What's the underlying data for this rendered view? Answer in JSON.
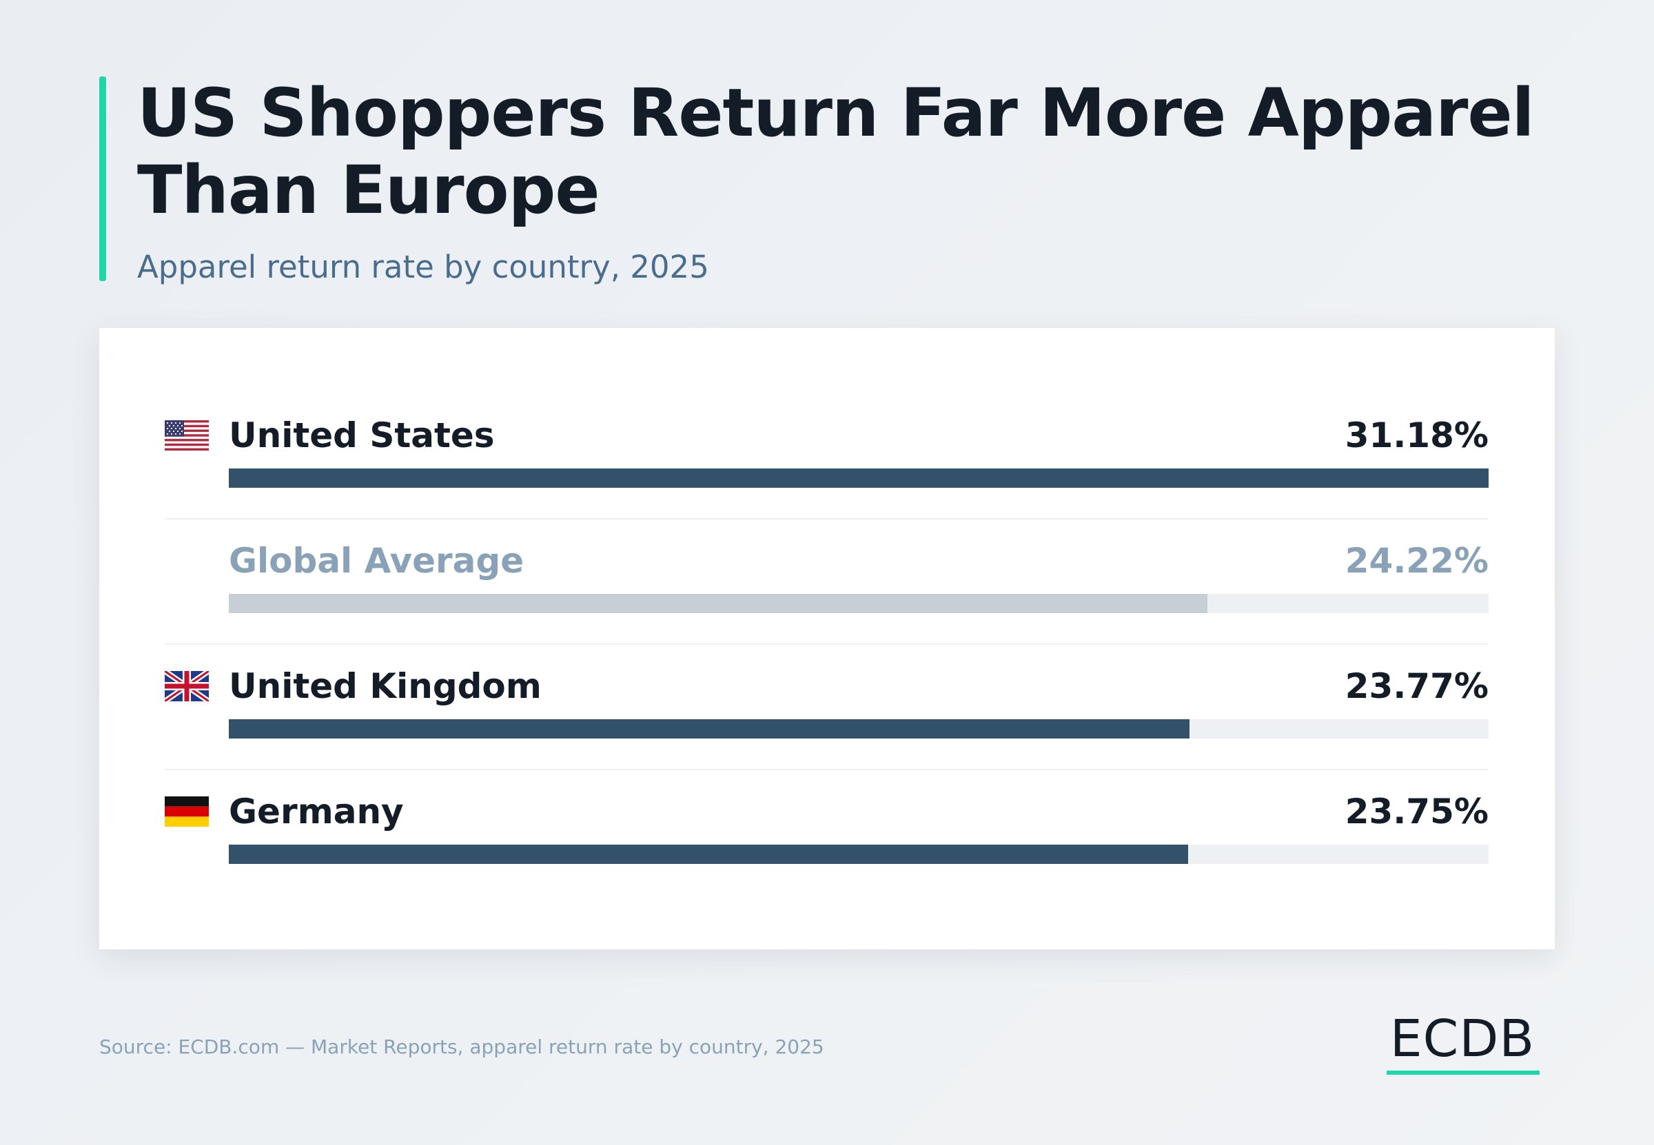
{
  "header": {
    "title": "US Shoppers Return Far More Apparel Than Europe",
    "subtitle": "Apparel return rate by country, 2025"
  },
  "chart_data": {
    "type": "bar",
    "orientation": "horizontal",
    "unit": "%",
    "categories": [
      "United States",
      "Global Average",
      "United Kingdom",
      "Germany"
    ],
    "values": [
      31.18,
      24.22,
      23.77,
      23.75
    ],
    "value_labels": [
      "31.18%",
      "24.22%",
      "23.77%",
      "23.75%"
    ],
    "highlight": [
      "United States",
      "United Kingdom",
      "Germany"
    ],
    "muted": [
      "Global Average"
    ],
    "xlim": [
      0,
      31.18
    ],
    "grid": false,
    "title": "US Shoppers Return Far More Apparel Than Europe",
    "subtitle": "Apparel return rate by country, 2025"
  },
  "rows": [
    {
      "label": "United States",
      "value_label": "31.18%",
      "value": 31.18,
      "flag": "us-flag-icon"
    },
    {
      "label": "Global Average",
      "value_label": "24.22%",
      "value": 24.22,
      "flag": null
    },
    {
      "label": "United Kingdom",
      "value_label": "23.77%",
      "value": 23.77,
      "flag": "uk-flag-icon"
    },
    {
      "label": "Germany",
      "value_label": "23.75%",
      "value": 23.75,
      "flag": "germany-flag-icon"
    }
  ],
  "colors": {
    "accent": "#1fd6a8",
    "bar": "#34516b",
    "bar_muted": "#c8ced6",
    "track": "#eef1f4",
    "text": "#131c27",
    "text_muted": "#8aa2b8",
    "subtitle": "#4a6d8e"
  },
  "footer": {
    "source": "Source: ECDB.com — Market Reports, apparel return rate by country, 2025",
    "logo_text": "ECDB"
  }
}
